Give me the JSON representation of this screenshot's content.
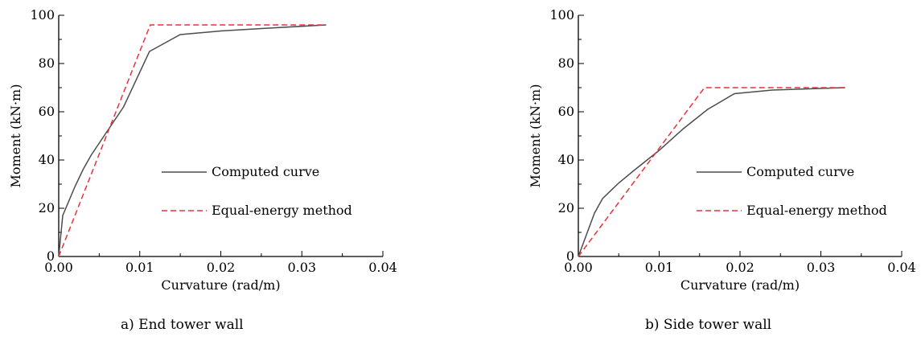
{
  "chart_data": [
    {
      "type": "line",
      "caption": "a) End tower wall",
      "xlabel": "Curvature (rad/m)",
      "ylabel": "Moment (kN·m)",
      "xlim": [
        0,
        0.04
      ],
      "ylim": [
        0,
        100
      ],
      "x_ticks": [
        "0.00",
        "0.01",
        "0.02",
        "0.03",
        "0.04"
      ],
      "y_ticks": [
        "0",
        "20",
        "40",
        "60",
        "80",
        "100"
      ],
      "grid": false,
      "legend_position": "right-middle",
      "series": [
        {
          "name": "Computed curve",
          "color": "#4d4d4d",
          "dash": "solid",
          "points": [
            [
              0,
              0
            ],
            [
              0.0005,
              17
            ],
            [
              0.002,
              29
            ],
            [
              0.003,
              36
            ],
            [
              0.004,
              42
            ],
            [
              0.006,
              52
            ],
            [
              0.008,
              62
            ],
            [
              0.0112,
              85
            ],
            [
              0.015,
              92
            ],
            [
              0.02,
              93.5
            ],
            [
              0.025,
              94.5
            ],
            [
              0.033,
              96
            ]
          ]
        },
        {
          "name": "Equal-energy method",
          "color": "#e8323c",
          "dash": "dashed",
          "points": [
            [
              0,
              0
            ],
            [
              0.0113,
              96
            ],
            [
              0.033,
              96
            ]
          ]
        }
      ]
    },
    {
      "type": "line",
      "caption": "b) Side tower wall",
      "xlabel": "Curvature (rad/m)",
      "ylabel": "Moment (kN·m)",
      "xlim": [
        0,
        0.04
      ],
      "ylim": [
        0,
        100
      ],
      "x_ticks": [
        "0.00",
        "0.01",
        "0.02",
        "0.03",
        "0.04"
      ],
      "y_ticks": [
        "0",
        "20",
        "40",
        "60",
        "80",
        "100"
      ],
      "grid": false,
      "legend_position": "right-middle",
      "series": [
        {
          "name": "Computed curve",
          "color": "#4d4d4d",
          "dash": "solid",
          "points": [
            [
              0,
              0
            ],
            [
              0.002,
              18
            ],
            [
              0.003,
              24
            ],
            [
              0.005,
              30.5
            ],
            [
              0.007,
              36
            ],
            [
              0.01,
              44
            ],
            [
              0.013,
              53
            ],
            [
              0.016,
              61
            ],
            [
              0.0193,
              67.5
            ],
            [
              0.024,
              69
            ],
            [
              0.033,
              70
            ]
          ]
        },
        {
          "name": "Equal-energy method",
          "color": "#e8323c",
          "dash": "dashed",
          "points": [
            [
              0,
              0
            ],
            [
              0.0156,
              70
            ],
            [
              0.033,
              70
            ]
          ]
        }
      ]
    }
  ]
}
